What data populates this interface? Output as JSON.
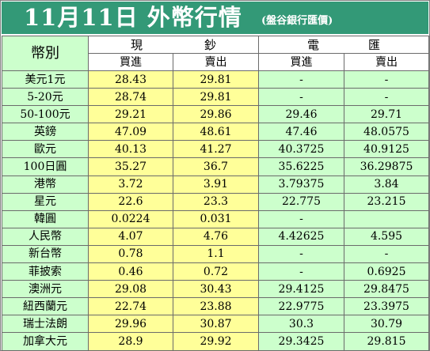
{
  "title": "11月11日 外幣行情",
  "subtitle": "(盤谷銀行匯價)",
  "headers": {
    "currency": "幣別",
    "cash_1": "現",
    "cash_2": "鈔",
    "wire_1": "電",
    "wire_2": "匯",
    "cash_buy": "買進",
    "cash_sell": "賣出",
    "wire_buy": "買進",
    "wire_sell": "賣出"
  },
  "rows": [
    {
      "name": "美元1元",
      "cash_buy": "28.43",
      "cash_sell": "29.81",
      "wire_buy": "-",
      "wire_sell": "-"
    },
    {
      "name": "5-20元",
      "cash_buy": "28.74",
      "cash_sell": "29.81",
      "wire_buy": "-",
      "wire_sell": "-"
    },
    {
      "name": "50-100元",
      "cash_buy": "29.21",
      "cash_sell": "29.86",
      "wire_buy": "29.46",
      "wire_sell": "29.71"
    },
    {
      "name": "英鎊",
      "cash_buy": "47.09",
      "cash_sell": "48.61",
      "wire_buy": "47.46",
      "wire_sell": "48.0575"
    },
    {
      "name": "歐元",
      "cash_buy": "40.13",
      "cash_sell": "41.27",
      "wire_buy": "40.3725",
      "wire_sell": "40.9125"
    },
    {
      "name": "100日圓",
      "cash_buy": "35.27",
      "cash_sell": "36.7",
      "wire_buy": "35.6225",
      "wire_sell": "36.29875"
    },
    {
      "name": "港幣",
      "cash_buy": "3.72",
      "cash_sell": "3.91",
      "wire_buy": "3.79375",
      "wire_sell": "3.84"
    },
    {
      "name": "星元",
      "cash_buy": "22.6",
      "cash_sell": "23.3",
      "wire_buy": "22.775",
      "wire_sell": "23.215"
    },
    {
      "name": "韓圓",
      "cash_buy": "0.0224",
      "cash_sell": "0.031",
      "wire_buy": "-",
      "wire_sell": ""
    },
    {
      "name": "人民幣",
      "cash_buy": "4.07",
      "cash_sell": "4.76",
      "wire_buy": "4.42625",
      "wire_sell": "4.595"
    },
    {
      "name": "新台幣",
      "cash_buy": "0.78",
      "cash_sell": "1.1",
      "wire_buy": "-",
      "wire_sell": "-"
    },
    {
      "name": "菲披索",
      "cash_buy": "0.46",
      "cash_sell": "0.72",
      "wire_buy": "-",
      "wire_sell": "0.6925"
    },
    {
      "name": "澳洲元",
      "cash_buy": "29.08",
      "cash_sell": "30.43",
      "wire_buy": "29.4125",
      "wire_sell": "29.8475"
    },
    {
      "name": "紐西蘭元",
      "cash_buy": "22.74",
      "cash_sell": "23.88",
      "wire_buy": "22.9775",
      "wire_sell": "23.3975"
    },
    {
      "name": "瑞士法朗",
      "cash_buy": "29.96",
      "cash_sell": "30.87",
      "wire_buy": "30.3",
      "wire_sell": "30.79"
    },
    {
      "name": "加拿大元",
      "cash_buy": "28.9",
      "cash_sell": "29.92",
      "wire_buy": "29.3425",
      "wire_sell": "29.815"
    }
  ],
  "colors": {
    "title_bg": "#339977",
    "label_bg": "#ccffcc",
    "cash_bg": "#ffff99",
    "wire_bg": "#ccffcc"
  }
}
